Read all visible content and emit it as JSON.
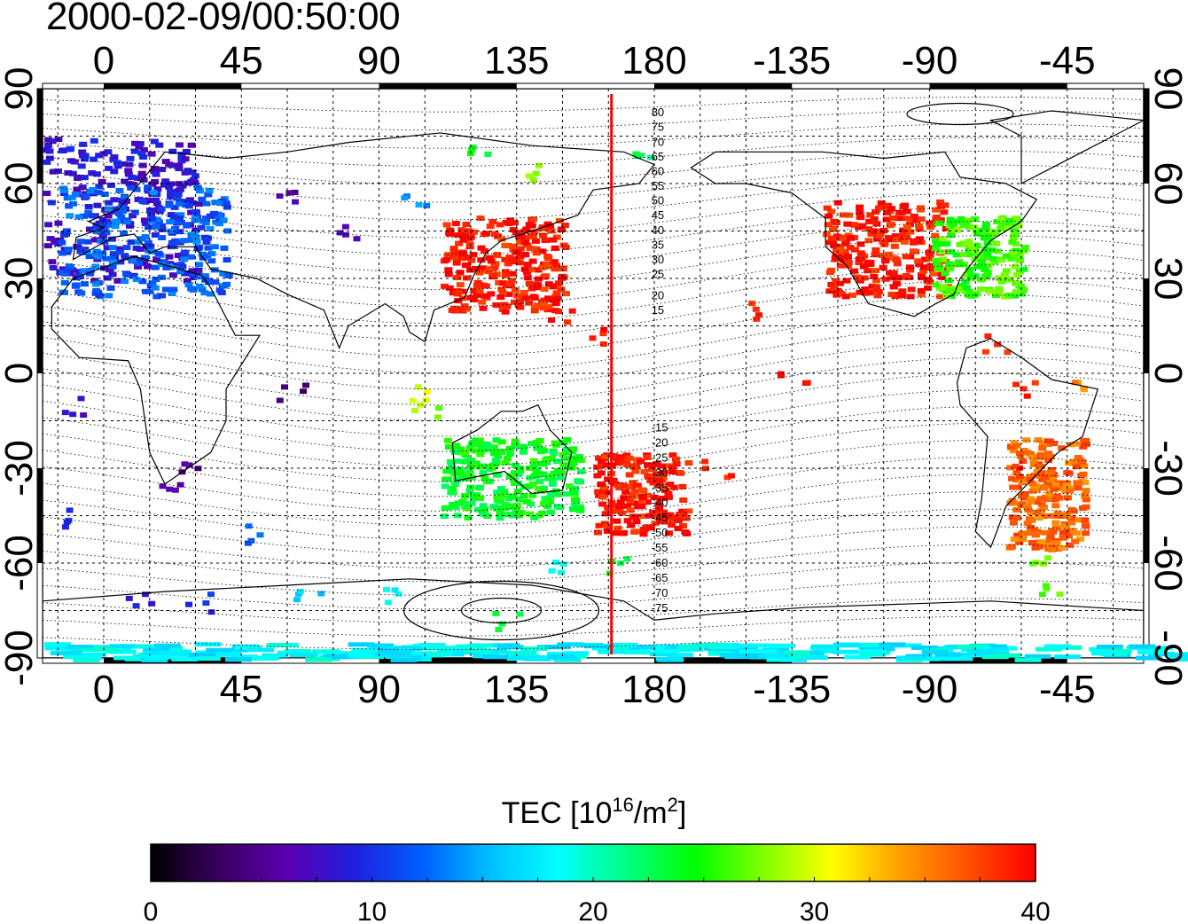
{
  "title": "2000-02-09/00:50:00",
  "map": {
    "top_lon_labels": [
      "0",
      "45",
      "90",
      "135",
      "180",
      "-135",
      "-90",
      "-45"
    ],
    "bottom_lon_labels": [
      "0",
      "45",
      "90",
      "135",
      "180",
      "-135",
      "-90",
      "-45"
    ],
    "left_lat_labels": [
      "90",
      "60",
      "30",
      "0",
      "-30",
      "-60",
      "-90"
    ],
    "right_lat_labels": [
      "90",
      "60",
      "30",
      "0",
      "-30",
      "-60",
      "-90"
    ],
    "north_contour_labels": [
      "80",
      "75",
      "70",
      "65",
      "60",
      "55",
      "50",
      "45",
      "40",
      "35",
      "30",
      "25",
      "20",
      "15"
    ],
    "south_contour_labels": [
      "-15",
      "-20",
      "-25",
      "-30",
      "-35",
      "-40",
      "-45",
      "-50",
      "-55",
      "-60",
      "-65",
      "-70",
      "-75"
    ],
    "meridian_line_lon": 166,
    "meridian_line_color": "#ff0000"
  },
  "colorbar": {
    "label_prefix": "TEC  [10",
    "label_exp": "16",
    "label_mid": "/m",
    "label_exp2": "2",
    "label_suffix": "]",
    "tick_labels": [
      "0",
      "10",
      "20",
      "30",
      "40"
    ],
    "min": 0,
    "max": 40,
    "colors": [
      "#000000",
      "#3a0060",
      "#5a00b0",
      "#2020e0",
      "#0060ff",
      "#00c0ff",
      "#00ffff",
      "#00ff80",
      "#00ff00",
      "#80ff00",
      "#ffff00",
      "#ffa000",
      "#ff5000",
      "#ff0000"
    ]
  },
  "chart_data": {
    "type": "heatmap",
    "title": "2000-02-09/00:50:00",
    "quantity": "TEC [10^16/m^2]",
    "color_range": [
      0,
      40
    ],
    "xlim": [
      -20,
      340
    ],
    "ylim": [
      -90,
      90
    ],
    "regions": [
      {
        "lon": [
          -20,
          30
        ],
        "lat": [
          30,
          75
        ],
        "tec": 8
      },
      {
        "lon": [
          -15,
          40
        ],
        "lat": [
          25,
          60
        ],
        "tec": 12
      },
      {
        "lon": [
          110,
          150
        ],
        "lat": [
          20,
          50
        ],
        "tec": 39
      },
      {
        "lon": [
          235,
          275
        ],
        "lat": [
          25,
          55
        ],
        "tec": 39
      },
      {
        "lon": [
          270,
          300
        ],
        "lat": [
          25,
          50
        ],
        "tec": 26
      },
      {
        "lon": [
          160,
          190
        ],
        "lat": [
          -50,
          -25
        ],
        "tec": 39
      },
      {
        "lon": [
          295,
          320
        ],
        "lat": [
          -55,
          -20
        ],
        "tec": 36
      },
      {
        "lon": [
          110,
          155
        ],
        "lat": [
          -45,
          -20
        ],
        "tec": 24
      },
      {
        "lon": [
          -20,
          360
        ],
        "lat": [
          -90,
          -85
        ],
        "tec": 18
      }
    ]
  }
}
